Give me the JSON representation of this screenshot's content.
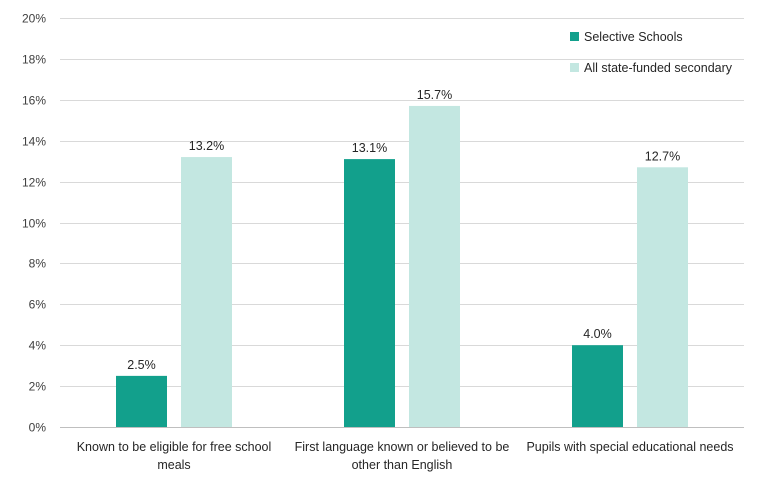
{
  "chart_data": {
    "type": "bar",
    "title": "",
    "xlabel": "",
    "ylabel": "",
    "categories": [
      [
        "Known to be eligible for free school",
        "meals"
      ],
      [
        "First language known or believed to be",
        "other than English"
      ],
      [
        "Pupils with special educational needs"
      ]
    ],
    "series": [
      {
        "name": "Selective Schools",
        "color": "#12a08c",
        "values": [
          2.5,
          13.1,
          4.0
        ],
        "labels": [
          "2.5%",
          "13.1%",
          "4.0%"
        ]
      },
      {
        "name": "All state-funded secondary",
        "color": "#c3e7e1",
        "values": [
          13.2,
          15.7,
          12.7
        ],
        "labels": [
          "13.2%",
          "15.7%",
          "12.7%"
        ]
      }
    ],
    "ylim": [
      0,
      20
    ],
    "yticks": [
      "0%",
      "2%",
      "4%",
      "6%",
      "8%",
      "10%",
      "12%",
      "14%",
      "16%",
      "18%",
      "20%"
    ],
    "grid": true,
    "legend_position": "top-right"
  }
}
